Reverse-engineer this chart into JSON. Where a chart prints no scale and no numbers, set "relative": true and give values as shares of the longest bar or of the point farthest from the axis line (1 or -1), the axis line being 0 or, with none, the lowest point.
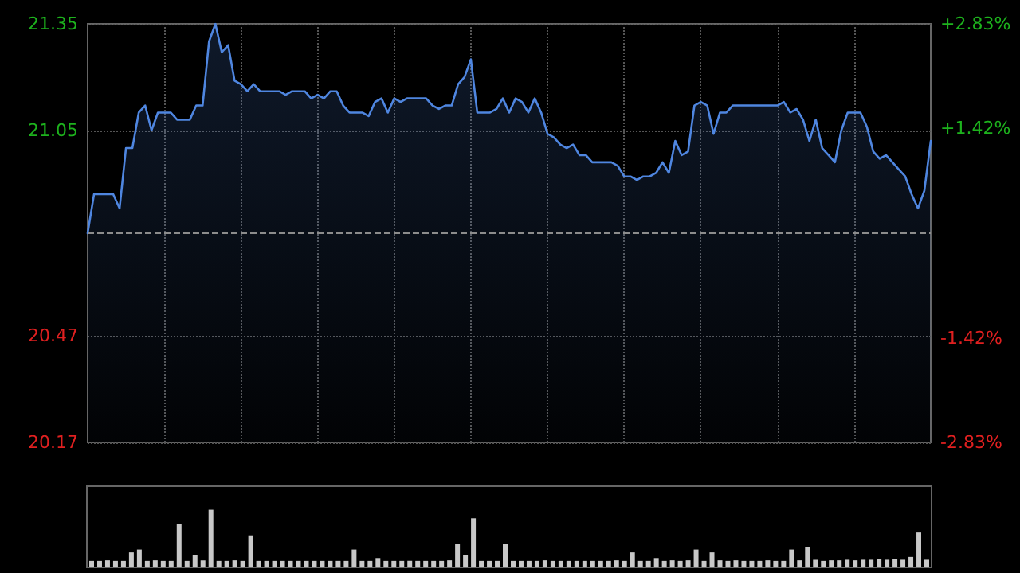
{
  "chart_data": [
    {
      "type": "area",
      "categories": [
        null,
        null,
        null,
        null,
        null,
        null,
        null,
        null,
        null,
        null,
        null,
        null,
        null,
        null,
        null,
        null,
        null,
        null,
        null,
        null,
        null,
        null,
        null,
        null,
        null,
        null,
        null,
        null,
        null,
        null,
        null,
        null,
        null,
        null,
        null,
        null,
        null,
        null,
        null,
        null,
        null,
        null,
        null,
        null,
        null,
        null,
        null,
        null,
        null,
        null,
        null,
        null,
        null,
        null,
        null,
        null,
        null,
        null,
        null,
        null,
        null,
        null,
        null,
        null,
        null,
        null,
        null,
        null,
        null,
        null,
        null,
        null,
        null,
        null,
        null,
        null,
        null,
        null,
        null,
        null,
        null,
        null,
        null,
        null,
        null,
        null,
        null,
        null,
        null,
        null,
        null,
        null,
        null,
        null,
        null,
        null,
        null,
        null,
        null,
        null,
        null,
        null,
        null,
        null,
        null,
        null,
        null,
        null,
        null,
        null,
        null,
        null,
        null,
        null,
        null,
        null,
        null,
        null,
        null,
        null,
        null,
        null,
        null,
        null,
        null,
        null,
        null,
        null,
        null,
        null,
        null,
        null,
        null
      ],
      "series": [
        {
          "color": "#4f86e0",
          "values": [
            20.76,
            20.87,
            20.87,
            20.87,
            20.87,
            20.83,
            21.0,
            21.0,
            21.1,
            21.12,
            21.05,
            21.1,
            21.1,
            21.1,
            21.08,
            21.08,
            21.08,
            21.12,
            21.12,
            21.3,
            21.35,
            21.27,
            21.29,
            21.19,
            21.18,
            21.16,
            21.18,
            21.16,
            21.16,
            21.16,
            21.16,
            21.15,
            21.16,
            21.16,
            21.16,
            21.14,
            21.15,
            21.14,
            21.16,
            21.16,
            21.12,
            21.1,
            21.1,
            21.1,
            21.09,
            21.13,
            21.14,
            21.1,
            21.14,
            21.13,
            21.14,
            21.14,
            21.14,
            21.14,
            21.12,
            21.11,
            21.12,
            21.12,
            21.18,
            21.2,
            21.25,
            21.1,
            21.1,
            21.1,
            21.11,
            21.14,
            21.1,
            21.14,
            21.13,
            21.1,
            21.14,
            21.1,
            21.04,
            21.03,
            21.01,
            21.0,
            21.01,
            20.98,
            20.98,
            20.96,
            20.96,
            20.96,
            20.96,
            20.95,
            20.92,
            20.92,
            20.91,
            20.92,
            20.92,
            20.93,
            20.96,
            20.93,
            21.02,
            20.98,
            20.99,
            21.12,
            21.13,
            21.12,
            21.04,
            21.1,
            21.1,
            21.12,
            21.12,
            21.12,
            21.12,
            21.12,
            21.12,
            21.12,
            21.12,
            21.13,
            21.1,
            21.11,
            21.08,
            21.02,
            21.08,
            21.0,
            20.98,
            20.96,
            21.05,
            21.1,
            21.1,
            21.1,
            21.06,
            20.99,
            20.97,
            20.98,
            20.96,
            20.94,
            20.92,
            20.87,
            20.83,
            20.88,
            21.02
          ]
        }
      ],
      "ylim": [
        20.17,
        21.35
      ],
      "yticks": [
        20.17,
        20.47,
        21.05,
        21.35
      ],
      "y2lim": [
        -2.83,
        2.83
      ],
      "y2ticks": [
        {
          "value": -2.83,
          "label": "-2.83%"
        },
        {
          "value": -1.42,
          "label": "-1.42%"
        },
        {
          "value": 1.42,
          "label": "+1.42%"
        },
        {
          "value": 2.83,
          "label": "+2.83%"
        }
      ],
      "ref_lines": [
        {
          "axis": "y",
          "value": 20.76,
          "line_style": "dashed",
          "color": "#8c8c8c"
        }
      ],
      "grid": true,
      "marker": "none",
      "line_style": "solid"
    },
    {
      "type": "bar",
      "relative": true,
      "color": "#c8c8c8",
      "categories": [
        null,
        null,
        null,
        null,
        null,
        null,
        null,
        null,
        null,
        null,
        null,
        null,
        null,
        null,
        null,
        null,
        null,
        null,
        null,
        null,
        null,
        null,
        null,
        null,
        null,
        null,
        null,
        null,
        null,
        null,
        null,
        null,
        null,
        null,
        null,
        null,
        null,
        null,
        null,
        null,
        null,
        null,
        null,
        null,
        null,
        null,
        null,
        null,
        null,
        null,
        null,
        null,
        null,
        null,
        null,
        null,
        null,
        null,
        null,
        null,
        null,
        null,
        null,
        null,
        null,
        null,
        null,
        null,
        null,
        null,
        null,
        null,
        null,
        null,
        null,
        null,
        null,
        null,
        null,
        null,
        null,
        null,
        null,
        null,
        null,
        null,
        null,
        null,
        null,
        null,
        null,
        null,
        null,
        null,
        null,
        null,
        null,
        null,
        null,
        null,
        null,
        null,
        null,
        null,
        null,
        null
      ],
      "values": [
        0.1,
        0.1,
        0.11,
        0.1,
        0.1,
        0.25,
        0.3,
        0.1,
        0.11,
        0.1,
        0.1,
        0.75,
        0.1,
        0.2,
        0.11,
        1,
        0.1,
        0.1,
        0.11,
        0.1,
        0.55,
        0.1,
        0.1,
        0.1,
        0.1,
        0.1,
        0.1,
        0.1,
        0.1,
        0.1,
        0.1,
        0.1,
        0.1,
        0.3,
        0.1,
        0.1,
        0.15,
        0.1,
        0.1,
        0.1,
        0.1,
        0.1,
        0.1,
        0.1,
        0.1,
        0.11,
        0.4,
        0.2,
        0.85,
        0.1,
        0.1,
        0.1,
        0.4,
        0.1,
        0.1,
        0.1,
        0.1,
        0.11,
        0.1,
        0.1,
        0.1,
        0.1,
        0.1,
        0.1,
        0.1,
        0.1,
        0.11,
        0.1,
        0.25,
        0.1,
        0.1,
        0.15,
        0.1,
        0.11,
        0.1,
        0.11,
        0.3,
        0.1,
        0.25,
        0.11,
        0.1,
        0.11,
        0.1,
        0.1,
        0.1,
        0.11,
        0.1,
        0.1,
        0.3,
        0.11,
        0.35,
        0.12,
        0.1,
        0.11,
        0.11,
        0.12,
        0.11,
        0.12,
        0.12,
        0.14,
        0.12,
        0.14,
        0.12,
        0.17,
        0.6,
        0.12
      ]
    }
  ]
}
